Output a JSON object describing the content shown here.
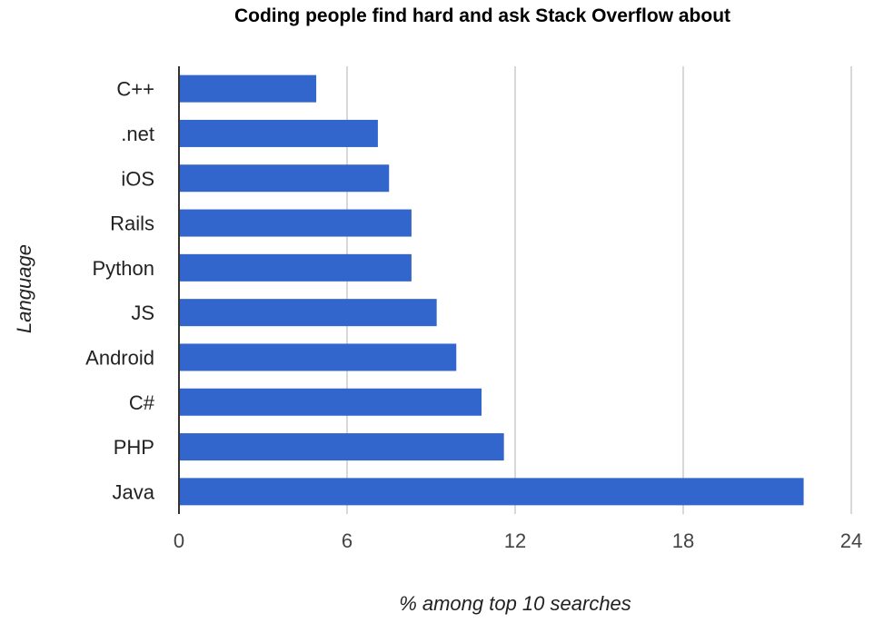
{
  "chart_data": {
    "type": "bar",
    "orientation": "horizontal",
    "title": "Coding people find hard and ask Stack Overflow about",
    "xlabel": "% among top 10 searches",
    "ylabel": "Language",
    "categories": [
      "C++",
      ".net",
      "iOS",
      "Rails",
      "Python",
      "JS",
      "Android",
      "C#",
      "PHP",
      "Java"
    ],
    "values": [
      4.9,
      7.1,
      7.5,
      8.3,
      8.3,
      9.2,
      9.9,
      10.8,
      11.6,
      22.3
    ],
    "xlim": [
      0,
      24
    ],
    "xticks": [
      "0",
      "6",
      "12",
      "18",
      "24"
    ],
    "grid": true,
    "bar_color": "#3366cc",
    "grid_color": "#cccccc",
    "axis_color": "#333333"
  }
}
